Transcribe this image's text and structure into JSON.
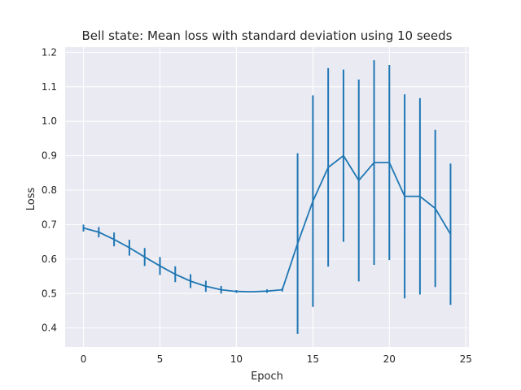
{
  "chart_data": {
    "type": "line",
    "title": "Bell state: Mean loss with standard deviation using 10 seeds",
    "xlabel": "Epoch",
    "ylabel": "Loss",
    "xlim": [
      -1.2,
      25.2
    ],
    "ylim": [
      0.345,
      1.215
    ],
    "xticks": [
      0,
      5,
      10,
      15,
      20,
      25
    ],
    "yticks": [
      0.4,
      0.5,
      0.6,
      0.7,
      0.8,
      0.9,
      1.0,
      1.1,
      1.2
    ],
    "ytick_labels": [
      "0.4",
      "0.5",
      "0.6",
      "0.7",
      "0.8",
      "0.9",
      "1.0",
      "1.1",
      "1.2"
    ],
    "grid": true,
    "line_color": "#1f77b4",
    "background_color": "#eaeaf2",
    "grid_color": "#ffffff",
    "series": [
      {
        "x": [
          0,
          1,
          2,
          3,
          4,
          5,
          6,
          7,
          8,
          9,
          10,
          11,
          12,
          13,
          14,
          15,
          16,
          17,
          18,
          19,
          20,
          21,
          22,
          23,
          24
        ],
        "y": [
          0.69,
          0.678,
          0.657,
          0.633,
          0.606,
          0.58,
          0.556,
          0.536,
          0.521,
          0.511,
          0.506,
          0.505,
          0.507,
          0.511,
          0.645,
          0.768,
          0.866,
          0.9,
          0.828,
          0.88,
          0.88,
          0.782,
          0.782,
          0.747,
          0.672
        ],
        "yerr": [
          0.01,
          0.015,
          0.02,
          0.023,
          0.026,
          0.026,
          0.023,
          0.02,
          0.016,
          0.011,
          0.004,
          0.002,
          0.005,
          0.005,
          0.262,
          0.307,
          0.288,
          0.25,
          0.293,
          0.297,
          0.283,
          0.296,
          0.285,
          0.228,
          0.205
        ]
      }
    ]
  }
}
